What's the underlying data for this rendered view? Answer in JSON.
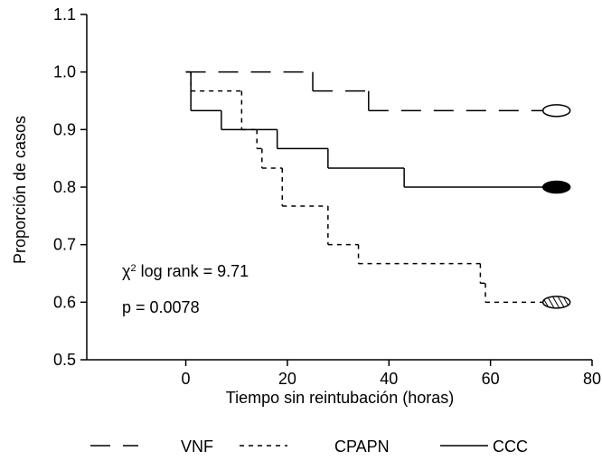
{
  "chart_data": {
    "type": "step",
    "xlabel": "Tiempo sin reintubación (horas)",
    "ylabel": "Proporción de casos",
    "xlim": [
      -19.5,
      80
    ],
    "xticks": [
      0,
      20,
      40,
      60,
      80
    ],
    "ylim": [
      0.5,
      1.1
    ],
    "yticks": [
      0.5,
      0.6,
      0.7,
      0.8,
      0.9,
      {
        "value": 1.0,
        "label": "1.0"
      },
      1.1
    ],
    "series": [
      {
        "name": "VNF",
        "color": "#000000",
        "line_style": "long-short",
        "marker_style": "open",
        "x": [
          0,
          25,
          36,
          73
        ],
        "values": [
          1.0,
          0.967,
          0.933,
          0.933
        ]
      },
      {
        "name": "CPAPN",
        "color": "#000000",
        "line_style": "short",
        "marker_style": "hatched",
        "x": [
          0,
          1,
          11,
          14,
          15,
          19,
          28,
          34,
          58,
          59,
          73
        ],
        "values": [
          1.0,
          0.967,
          0.9,
          0.867,
          0.833,
          0.767,
          0.7,
          0.667,
          0.633,
          0.6,
          0.6
        ]
      },
      {
        "name": "CCC",
        "color": "#000000",
        "line_style": "solid",
        "marker_style": "filled",
        "x": [
          0,
          1,
          7,
          18,
          28,
          43,
          73
        ],
        "values": [
          1.0,
          0.933,
          0.9,
          0.867,
          0.833,
          0.8,
          0.8
        ]
      }
    ],
    "annotations": [
      {
        "parts": [
          "χ",
          "2",
          " log rank = 9.71"
        ]
      },
      {
        "parts": [
          "p = 0.0078"
        ]
      }
    ]
  }
}
